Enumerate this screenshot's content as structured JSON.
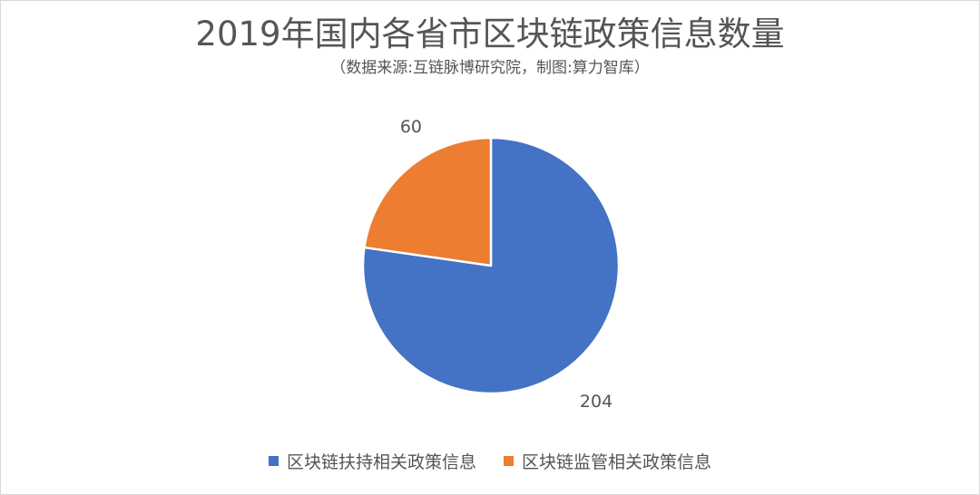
{
  "chart_data": {
    "type": "pie",
    "title": "2019年国内各省市区块链政策信息数量",
    "subtitle": "（数据来源:互链脉博研究院，制图:算力智库）",
    "categories": [
      "区块链扶持相关政策信息",
      "区块链监管相关政策信息"
    ],
    "values": [
      204,
      60
    ],
    "colors": [
      "#4472C4",
      "#ED7D31"
    ],
    "data_labels": [
      "204",
      "60"
    ],
    "legend_position": "bottom"
  }
}
